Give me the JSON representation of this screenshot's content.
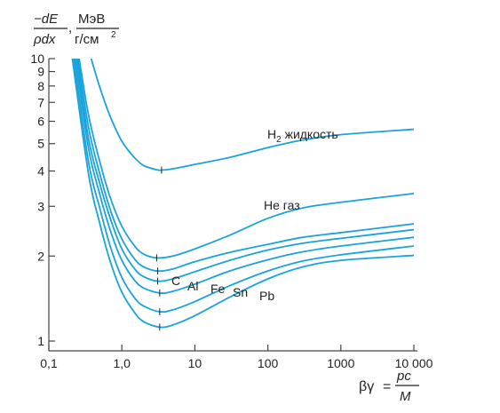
{
  "chart_data": {
    "type": "line",
    "title": "",
    "xlabel": "βγ = pc/M",
    "ylabel": "−dE/ρdx, МэВ/г/см²",
    "y_axis_title": {
      "numerator": "−dE",
      "denominator": "ρdx",
      "separator": ",",
      "unit_numerator": "МэВ",
      "unit_denominator": "г/см",
      "unit_exponent": "2"
    },
    "x_axis_title": {
      "lhs": "βγ",
      "eq": "=",
      "numerator": "pc",
      "denominator": "M"
    },
    "x_scale": "log",
    "y_scale": "log",
    "xlim": [
      0.1,
      10000
    ],
    "ylim": [
      1,
      10
    ],
    "x_ticks": [
      {
        "value": 0.1,
        "label": "0,1"
      },
      {
        "value": 1,
        "label": "1,0"
      },
      {
        "value": 10,
        "label": "10"
      },
      {
        "value": 100,
        "label": "100"
      },
      {
        "value": 1000,
        "label": "1000"
      },
      {
        "value": 10000,
        "label": "10 000"
      }
    ],
    "y_ticks": [
      {
        "value": 1,
        "label": "1"
      },
      {
        "value": 2,
        "label": "2"
      },
      {
        "value": 3,
        "label": "3"
      },
      {
        "value": 4,
        "label": "4"
      },
      {
        "value": 5,
        "label": "5"
      },
      {
        "value": 6,
        "label": "6"
      },
      {
        "value": 7,
        "label": "7"
      },
      {
        "value": 8,
        "label": "8"
      },
      {
        "value": 9,
        "label": "9"
      },
      {
        "value": 10,
        "label": "10"
      }
    ],
    "grid": false,
    "line_color": "#1aa3db",
    "series": [
      {
        "name": "H2 жидкость",
        "label_main": "H",
        "label_sub": "2",
        "label_rest": " жидкость",
        "minimum": {
          "x": 3.5,
          "y": 4.03
        },
        "points": [
          [
            0.38,
            10.0
          ],
          [
            0.5,
            7.9
          ],
          [
            0.7,
            6.2
          ],
          [
            1.0,
            5.1
          ],
          [
            1.5,
            4.45
          ],
          [
            2.0,
            4.18
          ],
          [
            3.0,
            4.04
          ],
          [
            3.5,
            4.03
          ],
          [
            5.0,
            4.07
          ],
          [
            10,
            4.22
          ],
          [
            30,
            4.47
          ],
          [
            100,
            4.84
          ],
          [
            300,
            5.15
          ],
          [
            1000,
            5.38
          ],
          [
            10000,
            5.62
          ]
        ]
      },
      {
        "name": "He газ",
        "label_main": "He газ",
        "minimum": {
          "x": 3.0,
          "y": 1.97
        },
        "points": [
          [
            0.26,
            10.0
          ],
          [
            0.35,
            6.3
          ],
          [
            0.5,
            4.3
          ],
          [
            0.7,
            3.2
          ],
          [
            1.0,
            2.55
          ],
          [
            1.5,
            2.17
          ],
          [
            2.0,
            2.03
          ],
          [
            3.0,
            1.97
          ],
          [
            5.0,
            2.0
          ],
          [
            10,
            2.12
          ],
          [
            30,
            2.37
          ],
          [
            100,
            2.72
          ],
          [
            300,
            2.96
          ],
          [
            1000,
            3.1
          ],
          [
            10000,
            3.33
          ]
        ]
      },
      {
        "name": "C",
        "label_main": "C",
        "minimum": {
          "x": 3.1,
          "y": 1.77
        },
        "points": [
          [
            0.25,
            10.0
          ],
          [
            0.35,
            5.7
          ],
          [
            0.5,
            3.9
          ],
          [
            0.7,
            2.9
          ],
          [
            1.0,
            2.3
          ],
          [
            1.5,
            1.95
          ],
          [
            2.0,
            1.83
          ],
          [
            3.1,
            1.77
          ],
          [
            5.0,
            1.8
          ],
          [
            10,
            1.91
          ],
          [
            30,
            2.06
          ],
          [
            100,
            2.2
          ],
          [
            300,
            2.33
          ],
          [
            1000,
            2.42
          ],
          [
            10000,
            2.6
          ]
        ]
      },
      {
        "name": "Al",
        "label_main": "Al",
        "minimum": {
          "x": 3.1,
          "y": 1.63
        },
        "points": [
          [
            0.24,
            10.0
          ],
          [
            0.35,
            5.2
          ],
          [
            0.5,
            3.6
          ],
          [
            0.7,
            2.7
          ],
          [
            1.0,
            2.12
          ],
          [
            1.5,
            1.8
          ],
          [
            2.0,
            1.69
          ],
          [
            3.1,
            1.63
          ],
          [
            5.0,
            1.66
          ],
          [
            10,
            1.76
          ],
          [
            30,
            1.93
          ],
          [
            100,
            2.1
          ],
          [
            300,
            2.22
          ],
          [
            1000,
            2.31
          ],
          [
            10000,
            2.48
          ]
        ]
      },
      {
        "name": "Fe",
        "label_main": "Fe",
        "minimum": {
          "x": 3.3,
          "y": 1.48
        },
        "points": [
          [
            0.23,
            10.0
          ],
          [
            0.35,
            4.8
          ],
          [
            0.5,
            3.3
          ],
          [
            0.7,
            2.45
          ],
          [
            1.0,
            1.93
          ],
          [
            1.5,
            1.64
          ],
          [
            2.0,
            1.54
          ],
          [
            3.3,
            1.48
          ],
          [
            5.0,
            1.5
          ],
          [
            10,
            1.59
          ],
          [
            30,
            1.77
          ],
          [
            100,
            1.94
          ],
          [
            300,
            2.07
          ],
          [
            1000,
            2.17
          ],
          [
            10000,
            2.33
          ]
        ]
      },
      {
        "name": "Sn",
        "label_main": "Sn",
        "minimum": {
          "x": 3.3,
          "y": 1.27
        },
        "points": [
          [
            0.22,
            10.0
          ],
          [
            0.35,
            4.3
          ],
          [
            0.5,
            2.95
          ],
          [
            0.7,
            2.15
          ],
          [
            1.0,
            1.68
          ],
          [
            1.5,
            1.42
          ],
          [
            2.0,
            1.33
          ],
          [
            3.3,
            1.27
          ],
          [
            5.0,
            1.29
          ],
          [
            10,
            1.38
          ],
          [
            30,
            1.57
          ],
          [
            100,
            1.77
          ],
          [
            300,
            1.92
          ],
          [
            1000,
            2.02
          ],
          [
            10000,
            2.17
          ]
        ]
      },
      {
        "name": "Pb",
        "label_main": "Pb",
        "minimum": {
          "x": 3.3,
          "y": 1.12
        },
        "points": [
          [
            0.21,
            10.0
          ],
          [
            0.35,
            3.9
          ],
          [
            0.5,
            2.6
          ],
          [
            0.7,
            1.9
          ],
          [
            1.0,
            1.49
          ],
          [
            1.5,
            1.26
          ],
          [
            2.0,
            1.17
          ],
          [
            3.3,
            1.12
          ],
          [
            5.0,
            1.14
          ],
          [
            10,
            1.23
          ],
          [
            30,
            1.43
          ],
          [
            100,
            1.66
          ],
          [
            300,
            1.83
          ],
          [
            1000,
            1.93
          ],
          [
            10000,
            2.01
          ]
        ]
      }
    ]
  }
}
